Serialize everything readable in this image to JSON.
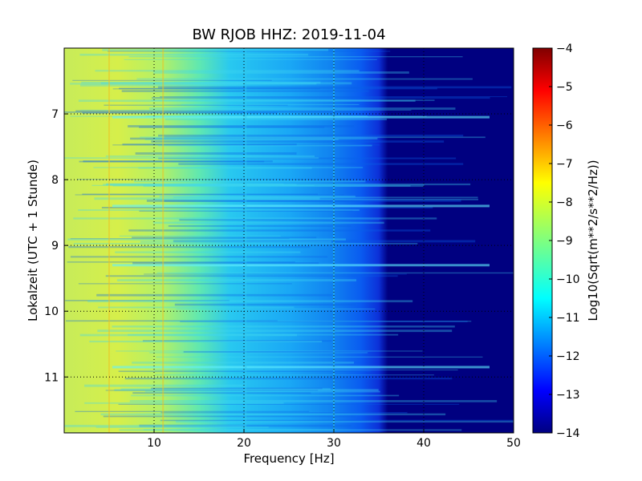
{
  "chart_data": {
    "type": "heatmap",
    "title": "BW RJOB HHZ: 2019-11-04",
    "xlabel": "Frequency [Hz]",
    "ylabel": "Lokalzeit (UTC + 1 Stunde)",
    "xlim": [
      0,
      50
    ],
    "ylim": [
      11.85,
      6.0
    ],
    "y_inverted": true,
    "x_ticks": [
      10,
      20,
      30,
      40,
      50
    ],
    "y_ticks": [
      7,
      8,
      9,
      10,
      11
    ],
    "grid": true,
    "colormap": "jet",
    "colorbar": {
      "label": "Log10(Sqrt(m**2/s**2/Hz))",
      "range": [
        -14,
        -4
      ],
      "ticks": [
        -4,
        -5,
        -6,
        -7,
        -8,
        -9,
        -10,
        -11,
        -12,
        -13,
        -14
      ]
    },
    "description_values": {
      "low_freq_level": -8,
      "mid_freq_level": -10.5,
      "high_freq_level": -11.5,
      "above_40hz_level": -14
    }
  }
}
